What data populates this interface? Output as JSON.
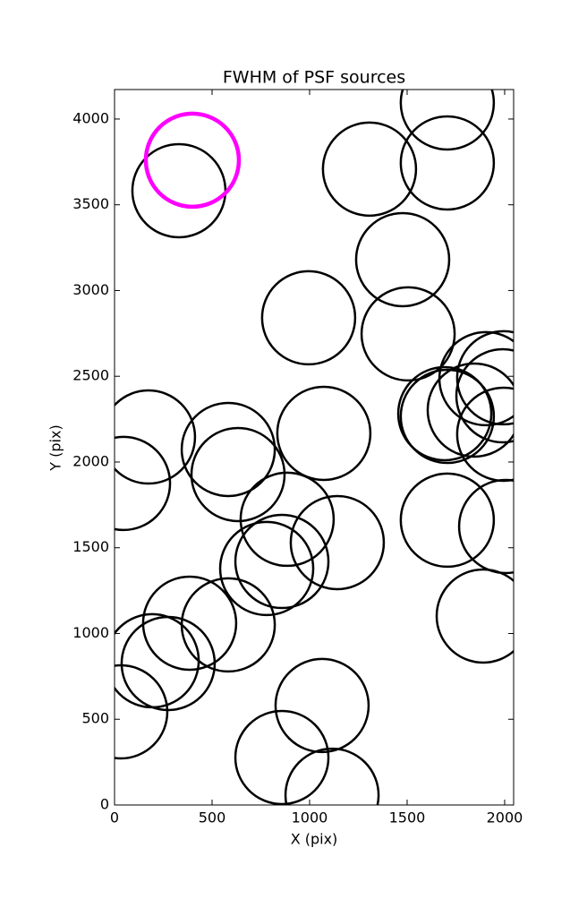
{
  "chart_data": {
    "type": "scatter",
    "title": "FWHM of PSF sources",
    "xlabel": "X (pix)",
    "ylabel": "Y (pix)",
    "xlim": [
      0,
      2046
    ],
    "ylim": [
      0,
      4172
    ],
    "xticks": [
      0,
      500,
      1000,
      1500,
      2000
    ],
    "yticks": [
      0,
      500,
      1000,
      1500,
      2000,
      2500,
      3000,
      3500,
      4000
    ],
    "grid": false,
    "series": [
      {
        "color": "#000000",
        "x": [
          330,
          1307,
          1706,
          1706,
          1477,
          995,
          1505,
          1904,
          1995,
          1991,
          1693,
          1706,
          1844,
          1995,
          174,
          46,
          583,
          633,
          1073,
          885,
          1142,
          1706,
          2005,
          780,
          858,
          385,
          583,
          1890,
          193,
          275,
          32,
          1064,
          858,
          1115
        ],
        "values": [
          3582,
          3708,
          4094,
          3744,
          3180,
          2841,
          2747,
          2486,
          2491,
          2386,
          2282,
          2266,
          2303,
          2162,
          2146,
          1875,
          2073,
          1927,
          2167,
          1666,
          1530,
          1661,
          1624,
          1379,
          1420,
          1060,
          1050,
          1102,
          841,
          825,
          543,
          580,
          277,
          57
        ]
      },
      {
        "color": "#ff00ff",
        "x": [
          399
        ],
        "values": [
          3760
        ]
      }
    ]
  }
}
